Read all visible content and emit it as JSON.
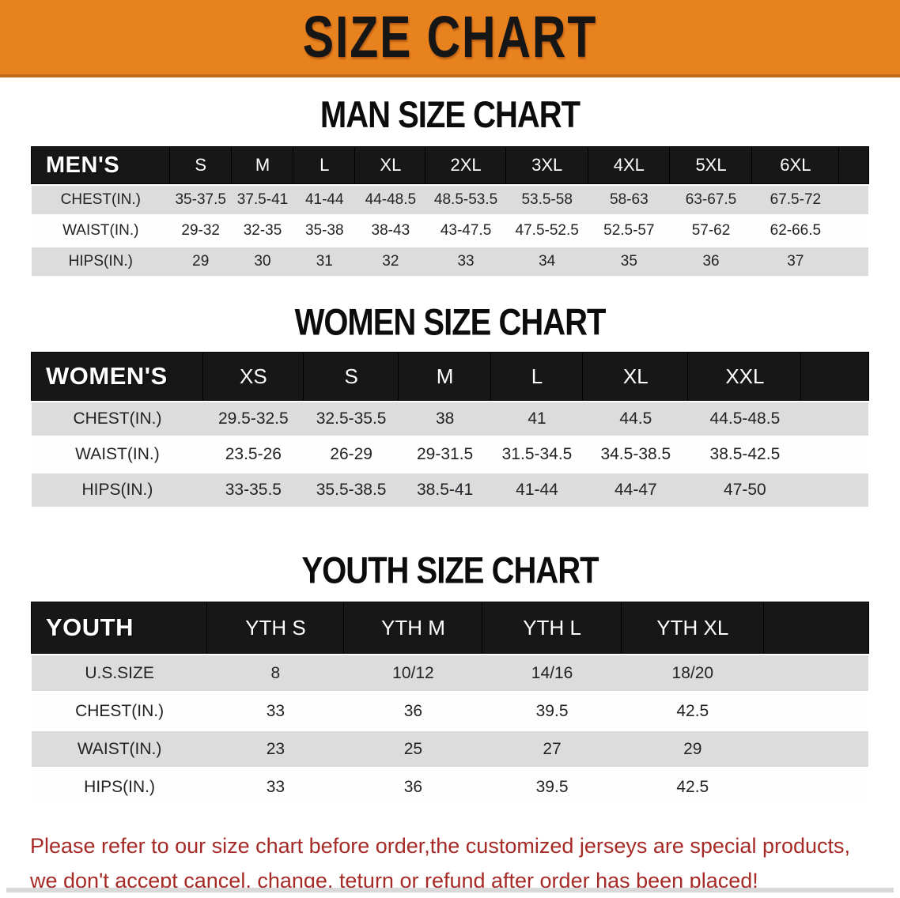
{
  "banner": {
    "title": "SIZE CHART",
    "bg_color": "#E8821F",
    "text_color": "#161616"
  },
  "chart_data": [
    {
      "type": "table",
      "title": "MAN SIZE CHART",
      "header_label": "MEN'S",
      "columns": [
        "S",
        "M",
        "L",
        "XL",
        "2XL",
        "3XL",
        "4XL",
        "5XL",
        "6XL"
      ],
      "rows": [
        {
          "label": "CHEST(IN.)",
          "values": [
            "35-37.5",
            "37.5-41",
            "41-44",
            "44-48.5",
            "48.5-53.5",
            "53.5-58",
            "58-63",
            "63-67.5",
            "67.5-72"
          ]
        },
        {
          "label": "WAIST(IN.)",
          "values": [
            "29-32",
            "32-35",
            "35-38",
            "38-43",
            "43-47.5",
            "47.5-52.5",
            "52.5-57",
            "57-62",
            "62-66.5"
          ]
        },
        {
          "label": "HIPS(IN.)",
          "values": [
            "29",
            "30",
            "31",
            "32",
            "33",
            "34",
            "35",
            "36",
            "37"
          ]
        }
      ]
    },
    {
      "type": "table",
      "title": "WOMEN SIZE CHART",
      "header_label": "WOMEN'S",
      "columns": [
        "XS",
        "S",
        "M",
        "L",
        "XL",
        "XXL"
      ],
      "rows": [
        {
          "label": "CHEST(IN.)",
          "values": [
            "29.5-32.5",
            "32.5-35.5",
            "38",
            "41",
            "44.5",
            "44.5-48.5"
          ]
        },
        {
          "label": "WAIST(IN.)",
          "values": [
            "23.5-26",
            "26-29",
            "29-31.5",
            "31.5-34.5",
            "34.5-38.5",
            "38.5-42.5"
          ]
        },
        {
          "label": "HIPS(IN.)",
          "values": [
            "33-35.5",
            "35.5-38.5",
            "38.5-41",
            "41-44",
            "44-47",
            "47-50"
          ]
        }
      ]
    },
    {
      "type": "table",
      "title": "YOUTH SIZE CHART",
      "header_label": "YOUTH",
      "columns": [
        "YTH S",
        "YTH M",
        "YTH L",
        "YTH XL"
      ],
      "rows": [
        {
          "label": "U.S.SIZE",
          "values": [
            "8",
            "10/12",
            "14/16",
            "18/20"
          ]
        },
        {
          "label": "CHEST(IN.)",
          "values": [
            "33",
            "36",
            "39.5",
            "42.5"
          ]
        },
        {
          "label": "WAIST(IN.)",
          "values": [
            "23",
            "25",
            "27",
            "29"
          ]
        },
        {
          "label": "HIPS(IN.)",
          "values": [
            "33",
            "36",
            "39.5",
            "42.5"
          ]
        }
      ]
    }
  ],
  "disclaimer": {
    "color": "#A62A26",
    "lines": [
      "Please refer to our size chart before order,the customized jerseys are special products,",
      "we don't accept cancel, change, teturn or refund after order has been placed!"
    ]
  }
}
